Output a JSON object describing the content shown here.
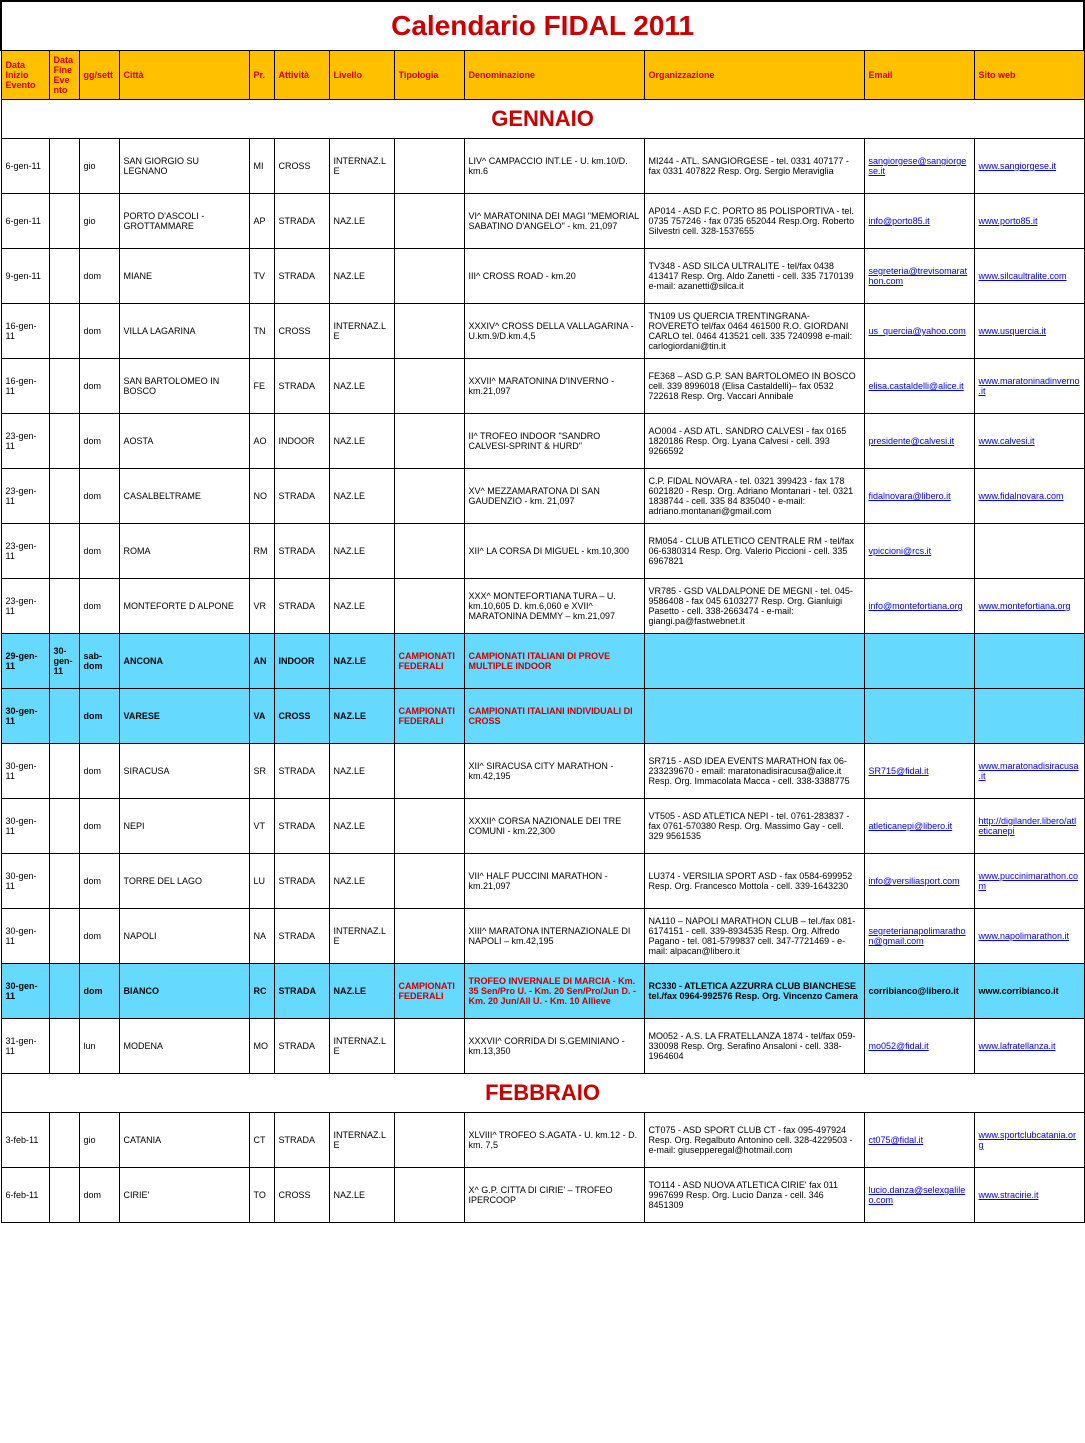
{
  "title": "Calendario FIDAL 2011",
  "headers": [
    "Data Inizio Evento",
    "Data Fine Evento",
    "gg/sett",
    "Città",
    "Pr.",
    "Attività",
    "Livello",
    "Tipologia",
    "Denominazione",
    "Organizzazione",
    "Email",
    "Sito web"
  ],
  "months": [
    {
      "name": "GENNAIO",
      "rows": [
        {
          "date": "6-gen-11",
          "gg": "gio",
          "citta": "SAN GIORGIO SU LEGNANO",
          "pr": "MI",
          "att": "CROSS",
          "liv": "INTERNAZ.LE",
          "tip": "",
          "denom": "LIV^ CAMPACCIO INT.LE - U. km.10/D. km.6",
          "org": "MI244 - ATL. SANGIORGESE - tel. 0331 407177 - fax 0331 407822 Resp. Org. Sergio Meraviglia",
          "email": "sangiorgese@sangiorgese.it",
          "sito": "www.sangiorgese.it",
          "hl": false
        },
        {
          "date": "6-gen-11",
          "gg": "gio",
          "citta": "PORTO D'ASCOLI - GROTTAMMARE",
          "pr": "AP",
          "att": "STRADA",
          "liv": "NAZ.LE",
          "tip": "",
          "denom": "VI^ MARATONINA DEI MAGI \"MEMORIAL SABATINO D'ANGELO\" - km. 21,097",
          "org": "AP014 - ASD F.C. PORTO 85 POLISPORTIVA - tel. 0735 757246 - fax 0735 652044 Resp.Org. Roberto Silvestri cell. 328-1537655",
          "email": "info@porto85.it",
          "sito": "www.porto85.it",
          "hl": false
        },
        {
          "date": "9-gen-11",
          "gg": "dom",
          "citta": "MIANE",
          "pr": "TV",
          "att": "STRADA",
          "liv": "NAZ.LE",
          "tip": "",
          "denom": "III^ CROSS ROAD - km.20",
          "org": "TV348 - ASD SILCA ULTRALITE - tel/fax 0438 413417 Resp. Org. Aldo Zanetti - cell. 335 7170139 e-mail: azanetti@silca.it",
          "email": "segreteria@trevisomarathon.com",
          "sito": "www.silcaultralite.com",
          "hl": false
        },
        {
          "date": "16-gen-11",
          "gg": "dom",
          "citta": "VILLA LAGARINA",
          "pr": "TN",
          "att": "CROSS",
          "liv": "INTERNAZ.LE",
          "tip": "",
          "denom": "XXXIV^ CROSS DELLA VALLAGARINA - U.km.9/D.km.4,5",
          "org": "TN109 US QUERCIA TRENTINGRANA-ROVERETO tel/fax 0464 461500 R.O. GIORDANI CARLO tel. 0464 413521 cell. 335 7240998 e-mail: carlogiordani@tin.it",
          "email": "us_quercia@yahoo.com",
          "sito": "www.usquercia.it",
          "hl": false
        },
        {
          "date": "16-gen-11",
          "gg": "dom",
          "citta": "SAN BARTOLOMEO IN BOSCO",
          "pr": "FE",
          "att": "STRADA",
          "liv": "NAZ.LE",
          "tip": "",
          "denom": "XXVII^ MARATONINA D'INVERNO - km.21,097",
          "org": "FE368 – ASD G.P. SAN BARTOLOMEO IN BOSCO cell. 339 8996018 (Elisa Castaldelli)– fax 0532 722618 Resp. Org. Vaccari Annibale",
          "email": "elisa.castaldelli@alice.it",
          "sito": "www.maratoninadinverno.it",
          "hl": false
        },
        {
          "date": "23-gen-11",
          "gg": "dom",
          "citta": "AOSTA",
          "pr": "AO",
          "att": "INDOOR",
          "liv": "NAZ.LE",
          "tip": "",
          "denom": "II^ TROFEO INDOOR \"SANDRO CALVESI-SPRINT & HURD\"",
          "org": "AO004 - ASD ATL. SANDRO CALVESI - fax 0165 1820186 Resp. Org. Lyana Calvesi - cell. 393 9266592",
          "email": "presidente@calvesi.it",
          "sito": "www.calvesi.it",
          "hl": false
        },
        {
          "date": "23-gen-11",
          "gg": "dom",
          "citta": "CASALBELTRAME",
          "pr": "NO",
          "att": "STRADA",
          "liv": "NAZ.LE",
          "tip": "",
          "denom": "XV^ MEZZAMARATONA DI SAN GAUDENZIO - km. 21,097",
          "org": "C.P. FIDAL NOVARA - tel. 0321 399423 - fax 178 6021820 - Resp. Org. Adriano Montanari - tel. 0321 1838744 - cell. 335 84 835040 - e-mail: adriano.montanari@gmail.com",
          "email": "fidalnovara@libero.it",
          "sito": "www.fidalnovara.com",
          "hl": false
        },
        {
          "date": "23-gen-11",
          "gg": "dom",
          "citta": "ROMA",
          "pr": "RM",
          "att": "STRADA",
          "liv": "NAZ.LE",
          "tip": "",
          "denom": "XII^ LA CORSA DI MIGUEL - km.10,300",
          "org": "RM054 - CLUB ATLETICO CENTRALE RM - tel/fax 06-6380314 Resp. Org. Valerio Piccioni - cell. 335 6967821",
          "email": "vpiccioni@rcs.it",
          "sito": "",
          "hl": false
        },
        {
          "date": "23-gen-11",
          "gg": "dom",
          "citta": "MONTEFORTE D ALPONE",
          "pr": "VR",
          "att": "STRADA",
          "liv": "NAZ.LE",
          "tip": "",
          "denom": "XXX^ MONTEFORTIANA TURA – U. km.10,605 D. km.6,060 e XVII^ MARATONINA DEMMY – km.21,097",
          "org": "VR785 - GSD VALDALPONE DE MEGNI - tel. 045-9586408 - fax 045 6103277 Resp. Org. Gianluigi Pasetto - cell. 338-2663474 - e-mail: giangi.pa@fastwebnet.it",
          "email": "info@montefortiana.org",
          "sito": "www.montefortiana.org",
          "hl": false
        },
        {
          "date": "29-gen-11",
          "date2": "30-gen-11",
          "gg": "sab-dom",
          "citta": "ANCONA",
          "pr": "AN",
          "att": "INDOOR",
          "liv": "NAZ.LE",
          "tip": "CAMPIONATI FEDERALI",
          "denom": "CAMPIONATI ITALIANI DI PROVE MULTIPLE INDOOR",
          "org": "",
          "email": "",
          "sito": "",
          "hl": true
        },
        {
          "date": "30-gen-11",
          "gg": "dom",
          "citta": "VARESE",
          "pr": "VA",
          "att": "CROSS",
          "liv": "NAZ.LE",
          "tip": "CAMPIONATI FEDERALI",
          "denom": "CAMPIONATI ITALIANI INDIVIDUALI DI CROSS",
          "org": "",
          "email": "",
          "sito": "",
          "hl": true
        },
        {
          "date": "30-gen-11",
          "gg": "dom",
          "citta": "SIRACUSA",
          "pr": "SR",
          "att": "STRADA",
          "liv": "NAZ.LE",
          "tip": "",
          "denom": "XII^ SIRACUSA CITY MARATHON - km.42,195",
          "org": "SR715 - ASD IDEA EVENTS MARATHON fax 06-233239670 - email: maratonadisiracusa@alice.it Resp. Org. Immacolata Macca - cell. 338-3388775",
          "email": "SR715@fidal.it",
          "sito": "www.maratonadisiracusa.it",
          "hl": false
        },
        {
          "date": "30-gen-11",
          "gg": "dom",
          "citta": "NEPI",
          "pr": "VT",
          "att": "STRADA",
          "liv": "NAZ.LE",
          "tip": "",
          "denom": "XXXII^ CORSA NAZIONALE DEI TRE COMUNI - km.22,300",
          "org": "VT505 - ASD ATLETICA NEPI - tel. 0761-283837 - fax 0761-570380 Resp. Org. Massimo Gay - cell. 329 9561535",
          "email": "atleticanepi@libero.it",
          "sito": "http://digilander.libero/atleticanepi",
          "hl": false
        },
        {
          "date": "30-gen-11",
          "gg": "dom",
          "citta": "TORRE DEL LAGO",
          "pr": "LU",
          "att": "STRADA",
          "liv": "NAZ.LE",
          "tip": "",
          "denom": "VII^ HALF PUCCINI MARATHON - km.21,097",
          "org": "LU374 - VERSILIA SPORT ASD - fax 0584-699952 Resp. Org. Francesco Mottola - cell. 339-1643230",
          "email": "info@versiliasport.com",
          "sito": "www.puccinimarathon.com",
          "hl": false
        },
        {
          "date": "30-gen-11",
          "gg": "dom",
          "citta": "NAPOLI",
          "pr": "NA",
          "att": "STRADA",
          "liv": "INTERNAZ.LE",
          "tip": "",
          "denom": "XIII^ MARATONA INTERNAZIONALE DI NAPOLI – km.42,195",
          "org": "NA110 – NAPOLI MARATHON CLUB – tel./fax 081-6174151 - cell. 339-8934535 Resp. Org. Alfredo Pagano - tel. 081-5799837 cell. 347-7721469 - e-mail: alpacan@libero.it",
          "email": "segreterianapolimarathon@gmail.com",
          "sito": "www.napolimarathon.it",
          "hl": false
        },
        {
          "date": "30-gen-11",
          "gg": "dom",
          "citta": "BIANCO",
          "pr": "RC",
          "att": "STRADA",
          "liv": "NAZ.LE",
          "tip": "CAMPIONATI FEDERALI",
          "denom": "TROFEO INVERNALE DI MARCIA - Km. 35 Sen/Pro U. - Km. 20 Sen/Pro/Jun D. - Km. 20 Jun/All U. - Km. 10 Allieve",
          "org": "RC330 - ATLETICA AZZURRA CLUB BIANCHESE tel./fax 0964-992576 Resp. Org. Vincenzo Camera",
          "email": "corribianco@libero.it",
          "sito": "www.corribianco.it",
          "hl": true
        },
        {
          "date": "31-gen-11",
          "gg": "lun",
          "citta": "MODENA",
          "pr": "MO",
          "att": "STRADA",
          "liv": "INTERNAZ.LE",
          "tip": "",
          "denom": "XXXVII^ CORRIDA DI S.GEMINIANO - km.13,350",
          "org": "MO052 - A.S. LA FRATELLANZA 1874 - tel/fax 059-330098 Resp. Org. Serafino Ansaloni - cell. 338-1964604",
          "email": "mo052@fidal.it",
          "sito": "www.lafratellanza.it",
          "hl": false
        }
      ]
    },
    {
      "name": "FEBBRAIO",
      "rows": [
        {
          "date": "3-feb-11",
          "gg": "gio",
          "citta": "CATANIA",
          "pr": "CT",
          "att": "STRADA",
          "liv": "INTERNAZ.LE",
          "tip": "",
          "denom": "XLVIII^ TROFEO S.AGATA - U. km.12 - D. km. 7,5",
          "org": "CT075 - ASD SPORT CLUB CT - fax 095-497924 Resp. Org. Regalbuto Antonino cell. 328-4229503 - e-mail: giusepperegal@hotmail.com",
          "email": "ct075@fidal.it",
          "sito": "www.sportclubcatania.org",
          "hl": false
        },
        {
          "date": "6-feb-11",
          "gg": "dom",
          "citta": "CIRIE'",
          "pr": "TO",
          "att": "CROSS",
          "liv": "NAZ.LE",
          "tip": "",
          "denom": "X^ G.P. CITTA DI CIRIE' – TROFEO IPERCOOP",
          "org": "TO114 - ASD NUOVA ATLETICA CIRIE' fax 011 9967699 Resp. Org. Lucio Danza - cell. 346 8451309",
          "email": "lucio.danza@selexgalileo.com",
          "sito": "www.stracirie.it",
          "hl": false
        }
      ]
    }
  ],
  "colors": {
    "title": "#c00",
    "header_bg": "#ffc000",
    "highlight_bg": "#66d9ff"
  }
}
